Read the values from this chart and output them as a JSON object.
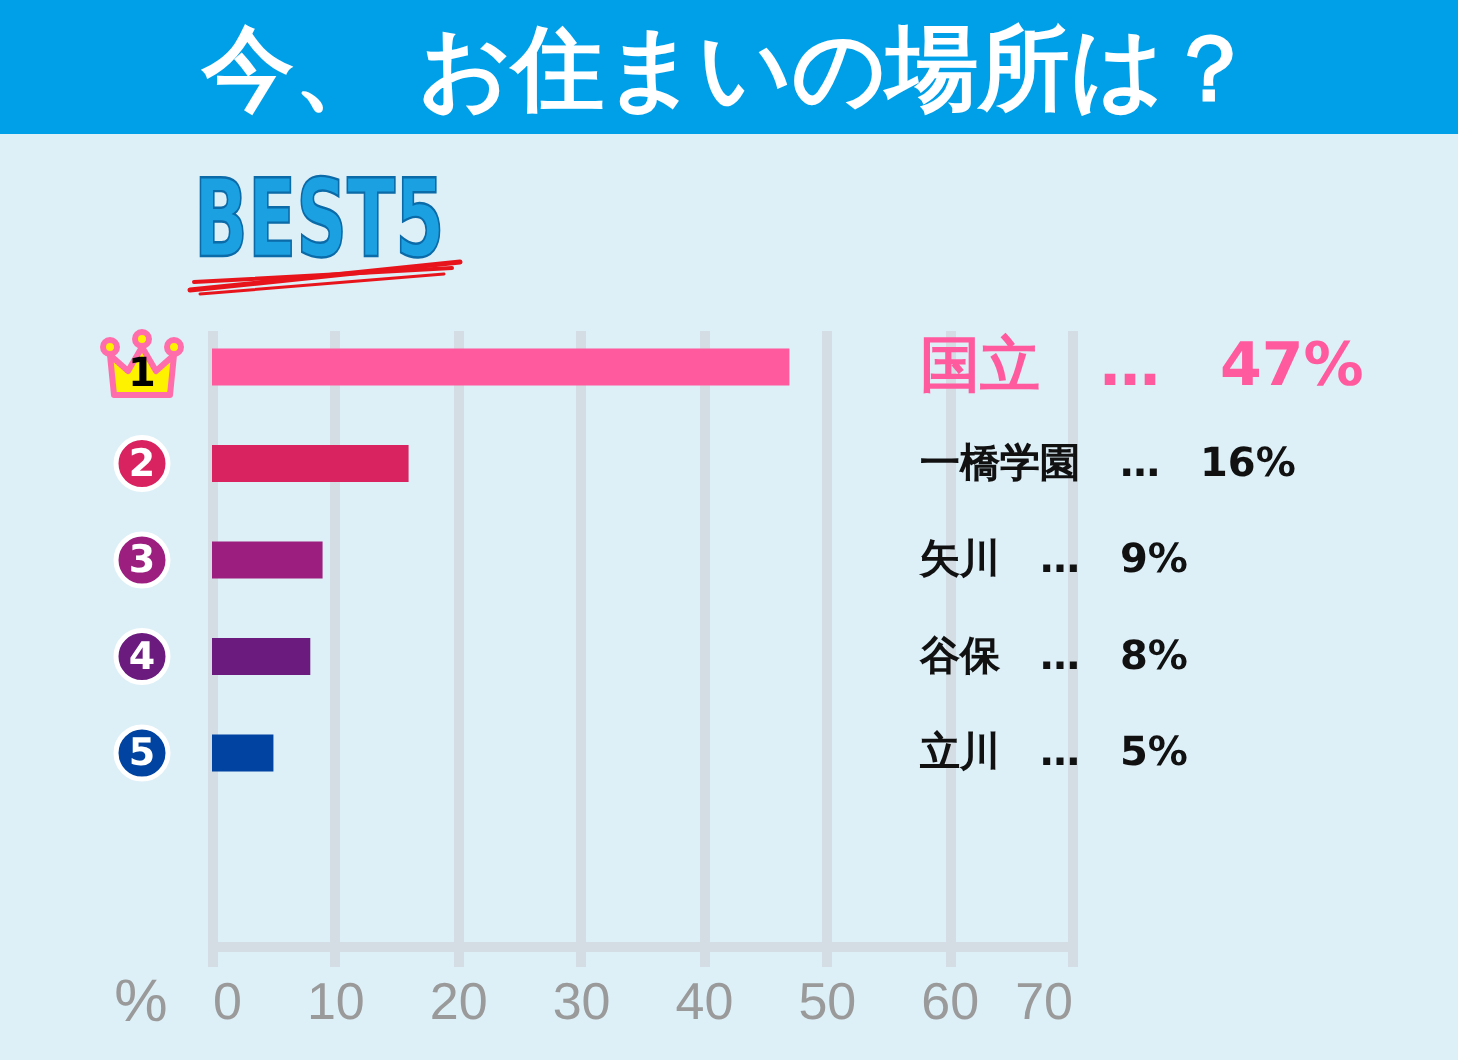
{
  "chart_data": {
    "type": "bar",
    "orientation": "horizontal",
    "title": "今、 お住まいの場所は？",
    "subtitle": "BEST5",
    "xlabel": "%",
    "categories": [
      "国立",
      "一橋学園",
      "矢川",
      "谷保",
      "立川"
    ],
    "values": [
      47,
      16,
      9,
      8,
      5
    ],
    "colors": [
      "#ff5a9e",
      "#d82360",
      "#9c1f80",
      "#6b1a7e",
      "#0043a0"
    ],
    "value_labels": [
      "…　47%",
      "…　16%",
      "…　9%",
      "…　8%",
      "…　5%"
    ],
    "xlim": [
      0,
      70
    ],
    "xticks": [
      0,
      10,
      20,
      30,
      40,
      50,
      60,
      70
    ],
    "grid": "x",
    "tick_labels": "x",
    "annotations": [
      "1",
      "2",
      "3",
      "4",
      "5"
    ]
  }
}
